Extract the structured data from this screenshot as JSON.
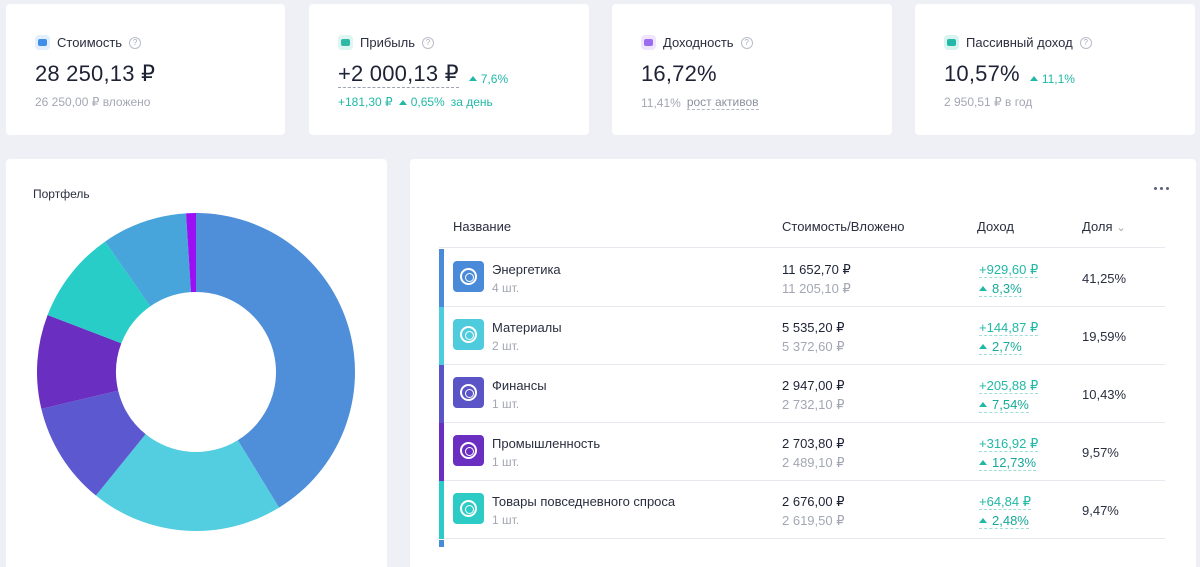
{
  "stats": [
    {
      "label": "Стоимость",
      "icon": "wallet-icon",
      "icon_color": "#3f8fe8",
      "icon_bg": "#e3effd",
      "value": "28 250,13 ₽",
      "sub": "26 250,00 ₽ вложено"
    },
    {
      "label": "Прибыль",
      "icon": "chart-icon",
      "icon_color": "#2fb9a6",
      "icon_bg": "#def5f1",
      "value": "+2 000,13 ₽",
      "change": "7,6%",
      "sub_abs": "+181,30 ₽",
      "sub_pct": "0,65%",
      "sub_suffix": "за день"
    },
    {
      "label": "Доходность",
      "icon": "calendar-icon",
      "icon_color": "#9b6cf0",
      "icon_bg": "#efe6fd",
      "value": "16,72%",
      "sub_value": "11,41%",
      "sub_link": "рост активов"
    },
    {
      "label": "Пассивный доход",
      "icon": "piggy-bank-icon",
      "icon_color": "#23b9a8",
      "icon_bg": "#d9f4f0",
      "value": "10,57%",
      "change": "11,1%",
      "sub": "2 950,51 ₽ в год"
    }
  ],
  "portfolio": {
    "title": "Портфель"
  },
  "table": {
    "headers": {
      "name": "Название",
      "value": "Стоимость/Вложено",
      "income": "Доход",
      "share": "Доля"
    },
    "rows": [
      {
        "name": "Энергетика",
        "qty": "4 шт.",
        "value": "11 652,70 ₽",
        "invested": "11 205,10 ₽",
        "income_abs": "+929,60 ₽",
        "income_pct": "8,3%",
        "share": "41,25%",
        "color": "#4a8bd9"
      },
      {
        "name": "Материалы",
        "qty": "2 шт.",
        "value": "5 535,20 ₽",
        "invested": "5 372,60 ₽",
        "income_abs": "+144,87 ₽",
        "income_pct": "2,7%",
        "share": "19,59%",
        "color": "#4ecbdc"
      },
      {
        "name": "Финансы",
        "qty": "1 шт.",
        "value": "2 947,00 ₽",
        "invested": "2 732,10 ₽",
        "income_abs": "+205,88 ₽",
        "income_pct": "7,54%",
        "share": "10,43%",
        "color": "#5b54c6"
      },
      {
        "name": "Промышленность",
        "qty": "1 шт.",
        "value": "2 703,80 ₽",
        "invested": "2 489,10 ₽",
        "income_abs": "+316,92 ₽",
        "income_pct": "12,73%",
        "share": "9,57%",
        "color": "#6a2fc0"
      },
      {
        "name": "Товары повседневного спроса",
        "qty": "1 шт.",
        "value": "2 676,00 ₽",
        "invested": "2 619,50 ₽",
        "income_abs": "+64,84 ₽",
        "income_pct": "2,48%",
        "share": "9,47%",
        "color": "#2ccbc5"
      }
    ]
  },
  "chart_data": {
    "type": "pie",
    "title": "Портфель",
    "donut": true,
    "slices": [
      {
        "value": 41.25,
        "color": "#4f8ed9"
      },
      {
        "value": 19.59,
        "color": "#53cde0"
      },
      {
        "value": 10.43,
        "color": "#5c58cf"
      },
      {
        "value": 9.57,
        "color": "#6a2fc0"
      },
      {
        "value": 9.47,
        "color": "#29cdc8"
      },
      {
        "value": 8.69,
        "color": "#48a5dc"
      },
      {
        "value": 1.0,
        "color": "#9b0ff5"
      }
    ]
  }
}
